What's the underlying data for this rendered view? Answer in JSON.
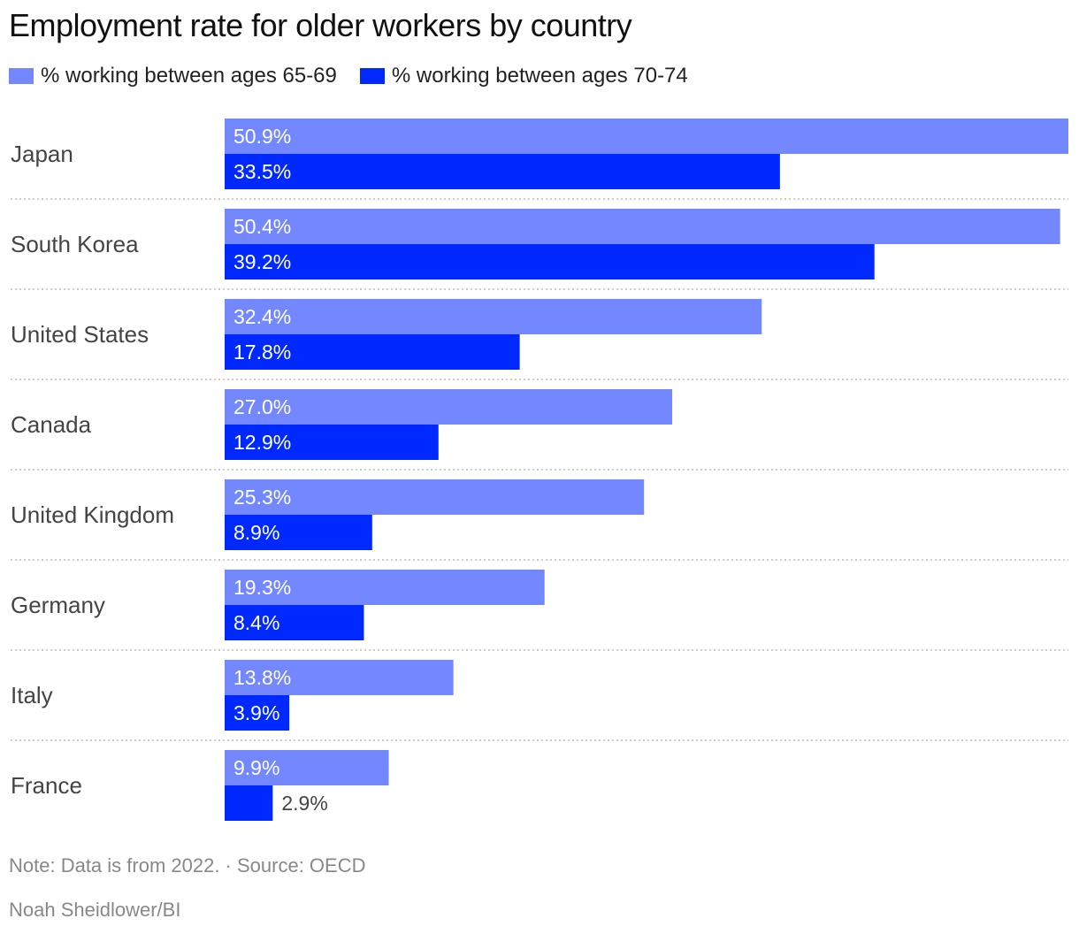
{
  "chart_data": {
    "type": "bar",
    "orientation": "horizontal",
    "title": "Employment rate for older workers by country",
    "categories": [
      "Japan",
      "South Korea",
      "United States",
      "Canada",
      "United Kingdom",
      "Germany",
      "Italy",
      "France"
    ],
    "series": [
      {
        "name": "% working between ages 65-69",
        "color": "#7388ff",
        "values": [
          50.9,
          50.4,
          32.4,
          27.0,
          25.3,
          19.3,
          13.8,
          9.9
        ]
      },
      {
        "name": "% working between ages 70-74",
        "color": "#0029ff",
        "values": [
          33.5,
          39.2,
          17.8,
          12.9,
          8.9,
          8.4,
          3.9,
          2.9
        ]
      }
    ],
    "value_suffix": "%",
    "xlim": [
      0,
      50.9
    ],
    "grid": false,
    "legend_placement": "top-left"
  },
  "footer": {
    "note": "Note: Data is from 2022.  · Source: OECD",
    "credit": "Noah Sheidlower/BI"
  }
}
